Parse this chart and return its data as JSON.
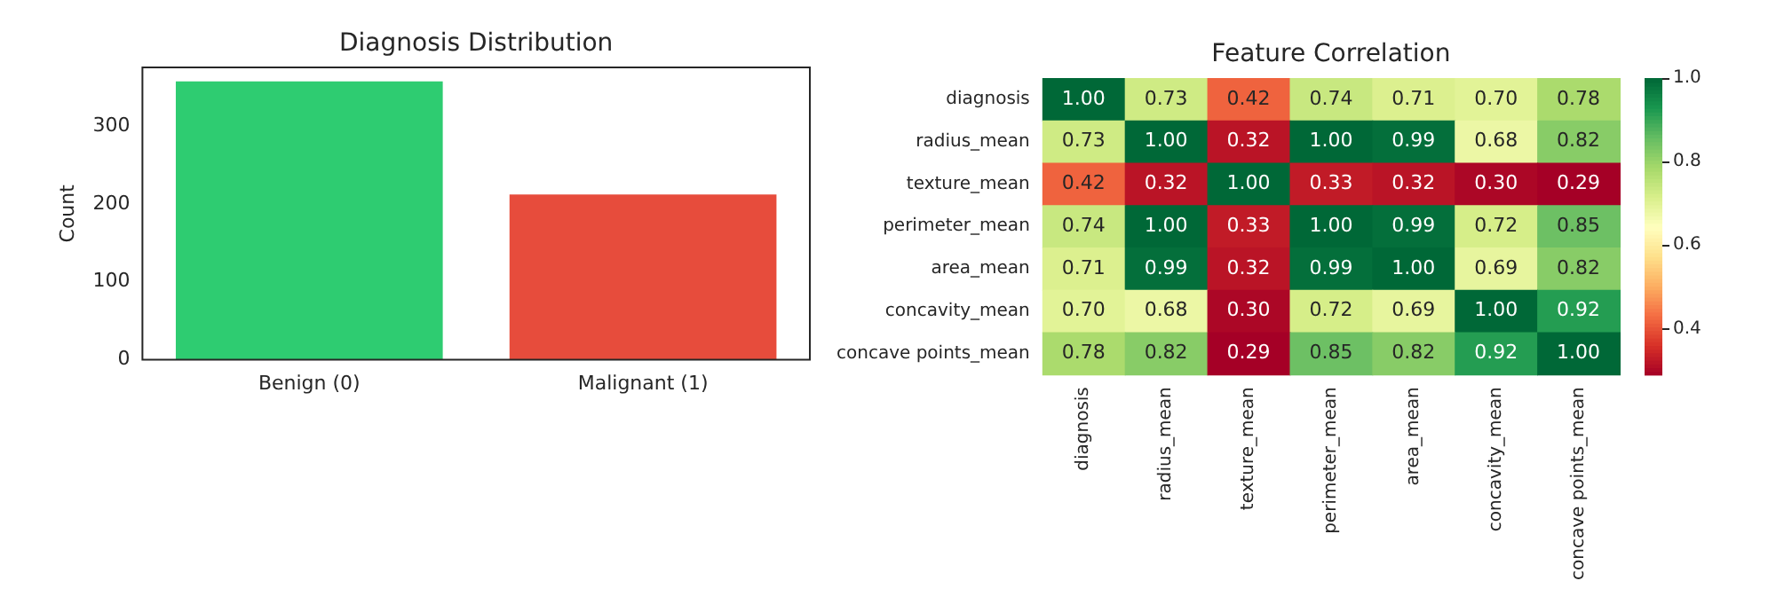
{
  "chart_data": [
    {
      "type": "bar",
      "title": "Diagnosis Distribution",
      "ylabel": "Count",
      "categories": [
        "Benign (0)",
        "Malignant (1)"
      ],
      "values": [
        357,
        212
      ],
      "colors": [
        "#2ecc71",
        "#e74c3c"
      ],
      "ylim": [
        0,
        375
      ],
      "yticks": [
        0,
        100,
        200,
        300
      ],
      "grid": false
    },
    {
      "type": "heatmap",
      "title": "Feature Correlation",
      "categories": [
        "diagnosis",
        "radius_mean",
        "texture_mean",
        "perimeter_mean",
        "area_mean",
        "concavity_mean",
        "concave points_mean"
      ],
      "y_categories": [
        "diagnosis",
        "radius_mean",
        "texture_mean",
        "perimeter_mean",
        "area_mean",
        "concavity_mean",
        "concave points_mean"
      ],
      "cells": [
        [
          1.0,
          0.73,
          0.42,
          0.74,
          0.71,
          0.7,
          0.78
        ],
        [
          0.73,
          1.0,
          0.32,
          1.0,
          0.99,
          0.68,
          0.82
        ],
        [
          0.42,
          0.32,
          1.0,
          0.33,
          0.32,
          0.3,
          0.29
        ],
        [
          0.74,
          1.0,
          0.33,
          1.0,
          0.99,
          0.72,
          0.85
        ],
        [
          0.71,
          0.99,
          0.32,
          0.99,
          1.0,
          0.69,
          0.82
        ],
        [
          0.7,
          0.68,
          0.3,
          0.72,
          0.69,
          1.0,
          0.92
        ],
        [
          0.78,
          0.82,
          0.29,
          0.85,
          0.82,
          0.92,
          1.0
        ]
      ],
      "cell_labels": [
        [
          "1.00",
          "0.73",
          "0.42",
          "0.74",
          "0.71",
          "0.70",
          "0.78"
        ],
        [
          "0.73",
          "1.00",
          "0.32",
          "1.00",
          "0.99",
          "0.68",
          "0.82"
        ],
        [
          "0.42",
          "0.32",
          "1.00",
          "0.33",
          "0.32",
          "0.30",
          "0.29"
        ],
        [
          "0.74",
          "1.00",
          "0.33",
          "1.00",
          "0.99",
          "0.72",
          "0.85"
        ],
        [
          "0.71",
          "0.99",
          "0.32",
          "0.99",
          "1.00",
          "0.69",
          "0.82"
        ],
        [
          "0.70",
          "0.68",
          "0.30",
          "0.72",
          "0.69",
          "1.00",
          "0.92"
        ],
        [
          "0.78",
          "0.82",
          "0.29",
          "0.85",
          "0.82",
          "0.92",
          "1.00"
        ]
      ],
      "clim": [
        0.29,
        1.0
      ],
      "cticks": [
        0.4,
        0.6,
        0.8,
        {
          "value": 1,
          "label": "1.0"
        }
      ]
    }
  ]
}
